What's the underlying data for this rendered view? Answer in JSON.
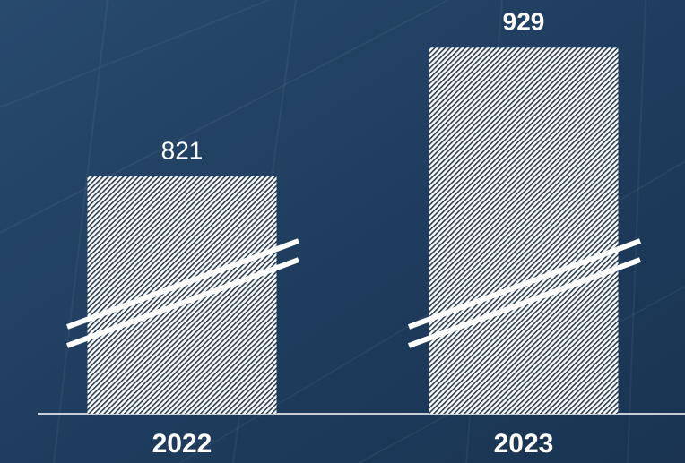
{
  "chart_data": {
    "type": "bar",
    "categories": [
      "2022",
      "2023"
    ],
    "values": [
      821,
      929
    ],
    "color": "#ffffff",
    "ylim": [
      622,
      969
    ]
  }
}
